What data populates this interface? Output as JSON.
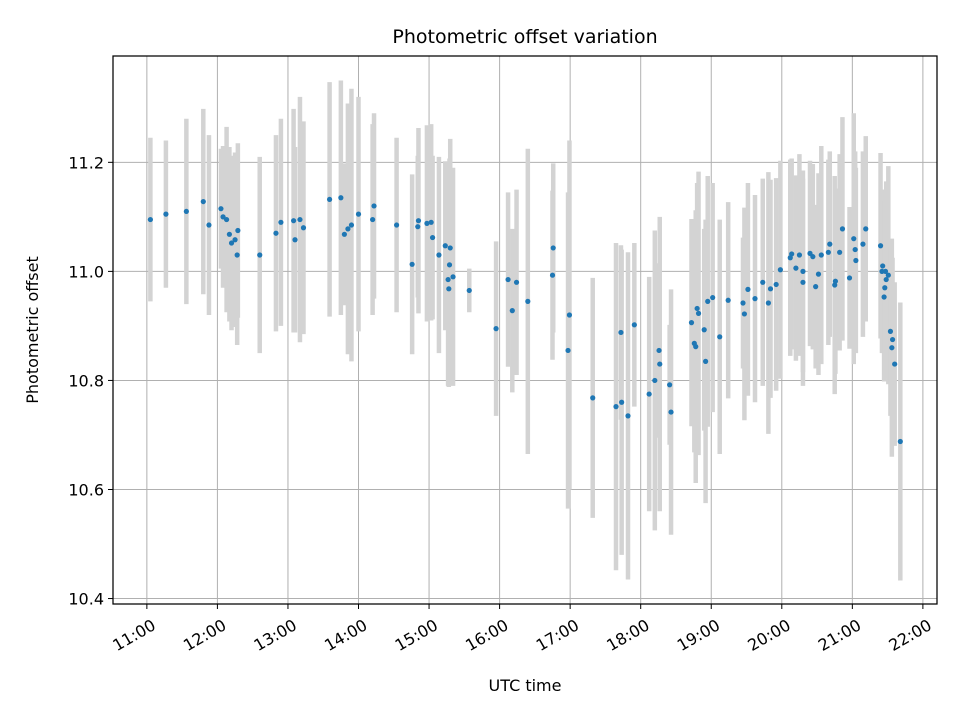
{
  "chart_data": {
    "type": "scatter",
    "title": "Photometric offset variation",
    "xlabel": "UTC time",
    "ylabel": "Photometric offset",
    "x_unit": "hour",
    "xlim": [
      10.52,
      22.2
    ],
    "ylim": [
      10.39,
      11.395
    ],
    "grid": true,
    "x_ticks": [
      {
        "value": 11,
        "label": "11:00"
      },
      {
        "value": 12,
        "label": "12:00"
      },
      {
        "value": 13,
        "label": "13:00"
      },
      {
        "value": 14,
        "label": "14:00"
      },
      {
        "value": 15,
        "label": "15:00"
      },
      {
        "value": 16,
        "label": "16:00"
      },
      {
        "value": 17,
        "label": "17:00"
      },
      {
        "value": 18,
        "label": "18:00"
      },
      {
        "value": 19,
        "label": "19:00"
      },
      {
        "value": 20,
        "label": "20:00"
      },
      {
        "value": 21,
        "label": "21:00"
      },
      {
        "value": 22,
        "label": "22:00"
      }
    ],
    "y_ticks": [
      {
        "value": 10.4,
        "label": "10.4"
      },
      {
        "value": 10.6,
        "label": "10.6"
      },
      {
        "value": 10.8,
        "label": "10.8"
      },
      {
        "value": 11.0,
        "label": "11.0"
      },
      {
        "value": 11.2,
        "label": "11.2"
      }
    ],
    "colors": {
      "point": "#1f77b4",
      "errorbar": "#d3d3d3",
      "grid": "#b0b0b0"
    },
    "points": [
      [
        11.05,
        11.095,
        0.15
      ],
      [
        11.27,
        11.105,
        0.135
      ],
      [
        11.56,
        11.11,
        0.17
      ],
      [
        11.8,
        11.128,
        0.17
      ],
      [
        11.88,
        11.085,
        0.165
      ],
      [
        12.05,
        11.115,
        0.11
      ],
      [
        12.08,
        11.1,
        0.13
      ],
      [
        12.13,
        11.095,
        0.17
      ],
      [
        12.17,
        11.068,
        0.16
      ],
      [
        12.2,
        11.052,
        0.16
      ],
      [
        12.25,
        11.058,
        0.16
      ],
      [
        12.29,
        11.075,
        0.16
      ],
      [
        12.28,
        11.03,
        0.165
      ],
      [
        12.6,
        11.03,
        0.18
      ],
      [
        12.83,
        11.07,
        0.18
      ],
      [
        12.9,
        11.09,
        0.19
      ],
      [
        13.08,
        11.093,
        0.205
      ],
      [
        13.1,
        11.058,
        0.17
      ],
      [
        13.17,
        11.095,
        0.225
      ],
      [
        13.22,
        11.08,
        0.195
      ],
      [
        13.59,
        11.132,
        0.215
      ],
      [
        13.75,
        11.135,
        0.215
      ],
      [
        13.8,
        11.068,
        0.13
      ],
      [
        13.85,
        11.078,
        0.23
      ],
      [
        13.9,
        11.085,
        0.25
      ],
      [
        14.0,
        11.105,
        0.215
      ],
      [
        14.2,
        11.095,
        0.175
      ],
      [
        14.22,
        11.12,
        0.17
      ],
      [
        14.54,
        11.085,
        0.16
      ],
      [
        14.76,
        11.013,
        0.165
      ],
      [
        14.84,
        11.082,
        0.13
      ],
      [
        14.85,
        11.093,
        0.17
      ],
      [
        14.97,
        11.088,
        0.18
      ],
      [
        15.03,
        11.09,
        0.18
      ],
      [
        15.05,
        11.062,
        0.15
      ],
      [
        15.14,
        11.03,
        0.18
      ],
      [
        15.23,
        11.047,
        0.155
      ],
      [
        15.27,
        10.985,
        0.195
      ],
      [
        15.28,
        10.968,
        0.18
      ],
      [
        15.29,
        11.012,
        0.195
      ],
      [
        15.3,
        11.043,
        0.2
      ],
      [
        15.34,
        10.99,
        0.2
      ],
      [
        15.57,
        10.965,
        0.04
      ],
      [
        15.95,
        10.895,
        0.16
      ],
      [
        16.12,
        10.985,
        0.16
      ],
      [
        16.18,
        10.928,
        0.15
      ],
      [
        16.24,
        10.98,
        0.17
      ],
      [
        16.4,
        10.945,
        0.28
      ],
      [
        16.75,
        10.993,
        0.155
      ],
      [
        16.76,
        11.043,
        0.155
      ],
      [
        16.97,
        10.855,
        0.29
      ],
      [
        16.99,
        10.92,
        0.32
      ],
      [
        17.32,
        10.768,
        0.22
      ],
      [
        17.65,
        10.752,
        0.3
      ],
      [
        17.72,
        10.888,
        0.16
      ],
      [
        17.73,
        10.76,
        0.28
      ],
      [
        17.82,
        10.735,
        0.3
      ],
      [
        17.91,
        10.902,
        0.15
      ],
      [
        18.12,
        10.775,
        0.215
      ],
      [
        18.2,
        10.8,
        0.275
      ],
      [
        18.26,
        10.855,
        0.16
      ],
      [
        18.27,
        10.83,
        0.27
      ],
      [
        18.41,
        10.792,
        0.11
      ],
      [
        18.43,
        10.742,
        0.225
      ],
      [
        18.72,
        10.906,
        0.19
      ],
      [
        18.76,
        10.868,
        0.2
      ],
      [
        18.78,
        10.862,
        0.25
      ],
      [
        18.8,
        10.932,
        0.23
      ],
      [
        18.82,
        10.923,
        0.26
      ],
      [
        18.9,
        10.893,
        0.185
      ],
      [
        18.92,
        10.835,
        0.26
      ],
      [
        18.95,
        10.945,
        0.23
      ],
      [
        19.02,
        10.952,
        0.21
      ],
      [
        19.12,
        10.88,
        0.215
      ],
      [
        19.24,
        10.947,
        0.18
      ],
      [
        19.45,
        10.942,
        0.12
      ],
      [
        19.47,
        10.922,
        0.195
      ],
      [
        19.52,
        10.967,
        0.195
      ],
      [
        19.62,
        10.95,
        0.19
      ],
      [
        19.73,
        10.98,
        0.19
      ],
      [
        19.81,
        10.942,
        0.24
      ],
      [
        19.84,
        10.968,
        0.2
      ],
      [
        19.92,
        10.976,
        0.195
      ],
      [
        19.98,
        11.003,
        0.2
      ],
      [
        20.12,
        11.025,
        0.18
      ],
      [
        20.14,
        11.032,
        0.175
      ],
      [
        20.2,
        11.006,
        0.17
      ],
      [
        20.25,
        11.03,
        0.185
      ],
      [
        20.3,
        11.0,
        0.185
      ],
      [
        20.3,
        10.98,
        0.19
      ],
      [
        20.4,
        11.033,
        0.17
      ],
      [
        20.44,
        11.027,
        0.17
      ],
      [
        20.48,
        10.972,
        0.15
      ],
      [
        20.52,
        10.995,
        0.185
      ],
      [
        20.56,
        11.03,
        0.2
      ],
      [
        20.66,
        11.035,
        0.17
      ],
      [
        20.68,
        11.05,
        0.17
      ],
      [
        20.75,
        10.975,
        0.2
      ],
      [
        20.76,
        10.982,
        0.17
      ],
      [
        20.82,
        11.035,
        0.18
      ],
      [
        20.86,
        11.078,
        0.205
      ],
      [
        20.96,
        10.988,
        0.13
      ],
      [
        21.02,
        11.06,
        0.23
      ],
      [
        21.04,
        11.04,
        0.18
      ],
      [
        21.05,
        11.02,
        0.17
      ],
      [
        21.15,
        11.05,
        0.17
      ],
      [
        21.19,
        11.078,
        0.17
      ],
      [
        21.4,
        11.047,
        0.17
      ],
      [
        21.42,
        11.0,
        0.15
      ],
      [
        21.43,
        11.01,
        0.14
      ],
      [
        21.45,
        10.953,
        0.155
      ],
      [
        21.46,
        10.97,
        0.16
      ],
      [
        21.47,
        11.0,
        0.14
      ],
      [
        21.48,
        10.985,
        0.18
      ],
      [
        21.51,
        10.993,
        0.2
      ],
      [
        21.54,
        10.89,
        0.155
      ],
      [
        21.56,
        10.86,
        0.2
      ],
      [
        21.57,
        10.875,
        0.15
      ],
      [
        21.6,
        10.83,
        0.15
      ],
      [
        21.68,
        10.688,
        0.255
      ]
    ]
  }
}
